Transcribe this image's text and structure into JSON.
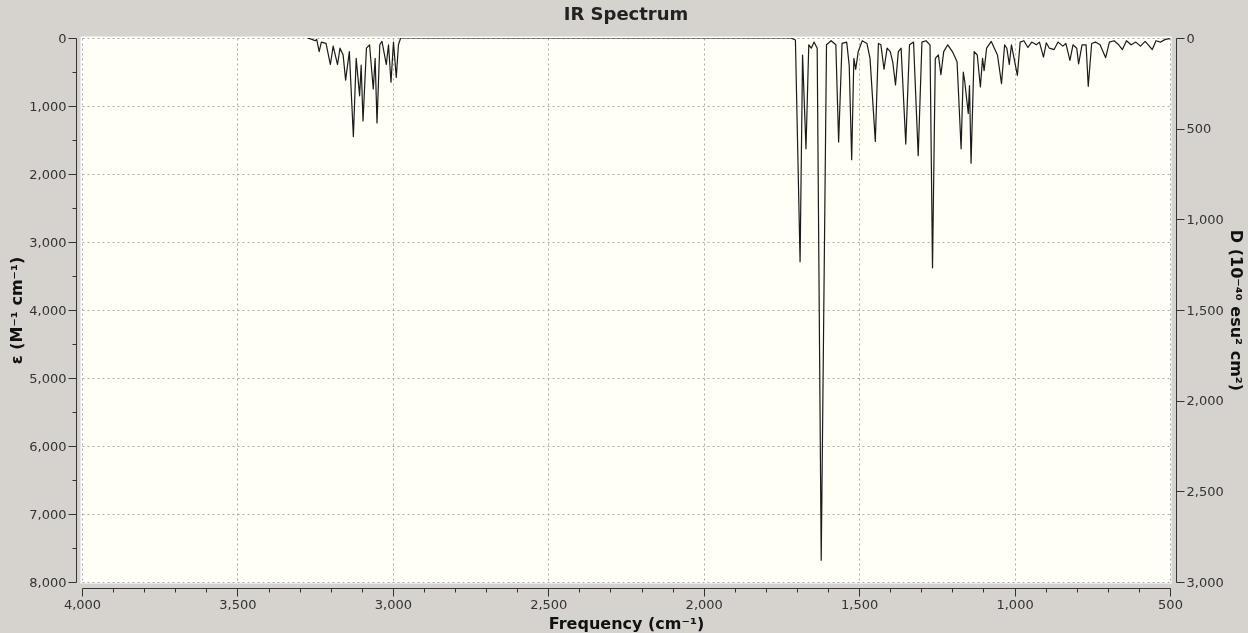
{
  "chart_data": {
    "type": "line",
    "title": "IR Spectrum",
    "xlabel": "Frequency (cm⁻¹)",
    "ylabel": "ε (M⁻¹ cm⁻¹)",
    "y2label": "D (10⁻⁴⁰ esu² cm²)",
    "xlim": [
      4000,
      500
    ],
    "ylim": [
      8000,
      0
    ],
    "y2lim": [
      3000,
      0
    ],
    "xticks": [
      {
        "value": 4000,
        "label": "4,000"
      },
      {
        "value": 3900,
        "label": null
      },
      {
        "value": 3800,
        "label": null
      },
      {
        "value": 3700,
        "label": null
      },
      {
        "value": 3600,
        "label": null
      },
      {
        "value": 3500,
        "label": "3,500"
      },
      {
        "value": 3400,
        "label": null
      },
      {
        "value": 3300,
        "label": null
      },
      {
        "value": 3200,
        "label": null
      },
      {
        "value": 3100,
        "label": null
      },
      {
        "value": 3000,
        "label": "3,000"
      },
      {
        "value": 2900,
        "label": null
      },
      {
        "value": 2800,
        "label": null
      },
      {
        "value": 2700,
        "label": null
      },
      {
        "value": 2600,
        "label": null
      },
      {
        "value": 2500,
        "label": "2,500"
      },
      {
        "value": 2400,
        "label": null
      },
      {
        "value": 2300,
        "label": null
      },
      {
        "value": 2200,
        "label": null
      },
      {
        "value": 2100,
        "label": null
      },
      {
        "value": 2000,
        "label": "2,000"
      },
      {
        "value": 1900,
        "label": null
      },
      {
        "value": 1800,
        "label": null
      },
      {
        "value": 1700,
        "label": null
      },
      {
        "value": 1600,
        "label": null
      },
      {
        "value": 1500,
        "label": "1,500"
      },
      {
        "value": 1400,
        "label": null
      },
      {
        "value": 1300,
        "label": null
      },
      {
        "value": 1200,
        "label": null
      },
      {
        "value": 1100,
        "label": null
      },
      {
        "value": 1000,
        "label": "1,000"
      },
      {
        "value": 900,
        "label": null
      },
      {
        "value": 800,
        "label": null
      },
      {
        "value": 700,
        "label": null
      },
      {
        "value": 600,
        "label": null
      },
      500
    ],
    "yticks": [
      0,
      {
        "value": 500,
        "label": null
      },
      {
        "value": 1000,
        "label": "1,000"
      },
      {
        "value": 1500,
        "label": null
      },
      {
        "value": 2000,
        "label": "2,000"
      },
      {
        "value": 2500,
        "label": null
      },
      {
        "value": 3000,
        "label": "3,000"
      },
      {
        "value": 3500,
        "label": null
      },
      {
        "value": 4000,
        "label": "4,000"
      },
      {
        "value": 4500,
        "label": null
      },
      {
        "value": 5000,
        "label": "5,000"
      },
      {
        "value": 5500,
        "label": null
      },
      {
        "value": 6000,
        "label": "6,000"
      },
      {
        "value": 6500,
        "label": null
      },
      {
        "value": 7000,
        "label": "7,000"
      },
      {
        "value": 7500,
        "label": null
      },
      {
        "value": 8000,
        "label": "8,000"
      }
    ],
    "y2ticks": [
      0,
      500,
      {
        "value": 1000,
        "label": "1,000"
      },
      {
        "value": 1500,
        "label": "1,500"
      },
      {
        "value": 2000,
        "label": "2,000"
      },
      {
        "value": 2500,
        "label": "2,500"
      },
      {
        "value": 3000,
        "label": "3,000"
      }
    ],
    "grid": true,
    "marker": "none",
    "line_style": "solid",
    "series": [
      {
        "color": "#1a1a1a",
        "x": [
          3275,
          3260,
          3250,
          3245,
          3237,
          3230,
          3215,
          3201,
          3192,
          3178,
          3170,
          3160,
          3152,
          3140,
          3127,
          3118,
          3107,
          3102,
          3096,
          3085,
          3075,
          3063,
          3057,
          3051,
          3042,
          3035,
          3021,
          3014,
          3006,
          2998,
          2989,
          2982,
          2975,
          1720,
          1705,
          1690,
          1682,
          1671,
          1662,
          1654,
          1645,
          1635,
          1622,
          1605,
          1590,
          1575,
          1566,
          1555,
          1540,
          1532,
          1524,
          1517,
          1511,
          1503,
          1490,
          1475,
          1465,
          1448,
          1438,
          1430,
          1420,
          1410,
          1400,
          1392,
          1383,
          1374,
          1365,
          1350,
          1338,
          1325,
          1310,
          1298,
          1285,
          1272,
          1264,
          1255,
          1245,
          1237,
          1228,
          1215,
          1200,
          1185,
          1172,
          1165,
          1160,
          1149,
          1145,
          1140,
          1130,
          1120,
          1110,
          1103,
          1098,
          1090,
          1075,
          1065,
          1055,
          1042,
          1032,
          1025,
          1017,
          1010,
          991,
          982,
          970,
          957,
          945,
          930,
          920,
          907,
          898,
          888,
          873,
          860,
          845,
          835,
          822,
          812,
          800,
          794,
          783,
          770,
          763,
          752,
          740,
          725,
          707,
          695,
          680,
          665,
          653,
          640,
          625,
          610,
          595,
          580,
          570,
          557,
          545,
          530,
          515,
          500
        ],
        "values": [
          0,
          20,
          40,
          20,
          200,
          60,
          80,
          390,
          120,
          390,
          150,
          250,
          620,
          200,
          1450,
          300,
          850,
          400,
          1220,
          150,
          100,
          750,
          300,
          1250,
          100,
          50,
          390,
          100,
          650,
          60,
          580,
          100,
          0,
          0,
          30,
          3290,
          250,
          1630,
          100,
          150,
          60,
          150,
          7680,
          100,
          40,
          100,
          1530,
          80,
          60,
          400,
          1790,
          300,
          460,
          200,
          40,
          80,
          300,
          1520,
          80,
          100,
          460,
          150,
          200,
          350,
          690,
          200,
          150,
          1560,
          100,
          60,
          1730,
          60,
          40,
          100,
          3380,
          300,
          250,
          540,
          200,
          100,
          200,
          350,
          1630,
          500,
          650,
          1110,
          700,
          1840,
          200,
          250,
          720,
          300,
          480,
          150,
          50,
          150,
          250,
          670,
          100,
          150,
          390,
          100,
          550,
          60,
          40,
          140,
          60,
          100,
          60,
          280,
          70,
          150,
          170,
          60,
          120,
          80,
          330,
          100,
          150,
          380,
          100,
          100,
          710,
          80,
          60,
          100,
          290,
          60,
          40,
          100,
          170,
          40,
          100,
          60,
          120,
          50,
          100,
          170,
          40,
          60,
          20,
          10
        ]
      }
    ]
  }
}
